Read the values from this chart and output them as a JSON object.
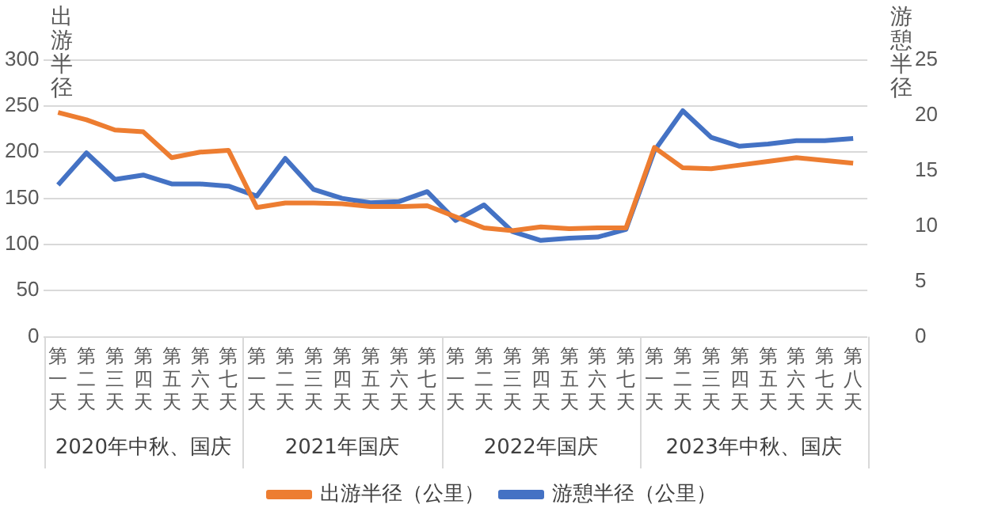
{
  "chart_data": {
    "type": "line",
    "ylabel": "出游半径",
    "y2label": "游憩半径",
    "categories": [
      "第一天",
      "第二天",
      "第三天",
      "第四天",
      "第五天",
      "第六天",
      "第七天",
      "第一天",
      "第二天",
      "第三天",
      "第四天",
      "第五天",
      "第六天",
      "第七天",
      "第一天",
      "第二天",
      "第三天",
      "第四天",
      "第五天",
      "第六天",
      "第七天",
      "第一天",
      "第二天",
      "第三天",
      "第四天",
      "第五天",
      "第六天",
      "第七天",
      "第八天"
    ],
    "annotations": [
      "2020年中秋、国庆",
      "2021年国庆",
      "2022年国庆",
      "2023年中秋、国庆"
    ],
    "series": [
      {
        "name": "出游半径（公里）",
        "color": "#ed7d31",
        "values": [
          243,
          235,
          224,
          222,
          194,
          200,
          202,
          140,
          145,
          145,
          144,
          141,
          141,
          142,
          130,
          118,
          115,
          119,
          117,
          118,
          118,
          205,
          183,
          182,
          186,
          190,
          194,
          191,
          188
        ]
      },
      {
        "name": "游憩半径（公里）",
        "color": "#4472c4",
        "axis": "y2",
        "values": [
          13.7,
          16.6,
          14.2,
          14.6,
          13.8,
          13.8,
          13.6,
          12.7,
          16.1,
          13.3,
          12.5,
          12.1,
          12.2,
          13.1,
          10.5,
          11.9,
          9.5,
          8.7,
          8.9,
          9.0,
          9.7,
          16.8,
          20.4,
          18.0,
          17.2,
          17.4,
          17.7,
          17.7,
          17.9
        ]
      }
    ],
    "ylim": [
      0,
      300
    ],
    "yticks": [
      0,
      50,
      100,
      150,
      200,
      250,
      300
    ],
    "y2lim": [
      0,
      25
    ],
    "y2ticks": [
      0,
      5,
      10,
      15,
      20,
      25
    ],
    "grid": "y",
    "legend": "bottom",
    "marker": "none",
    "line_style": "solid"
  }
}
